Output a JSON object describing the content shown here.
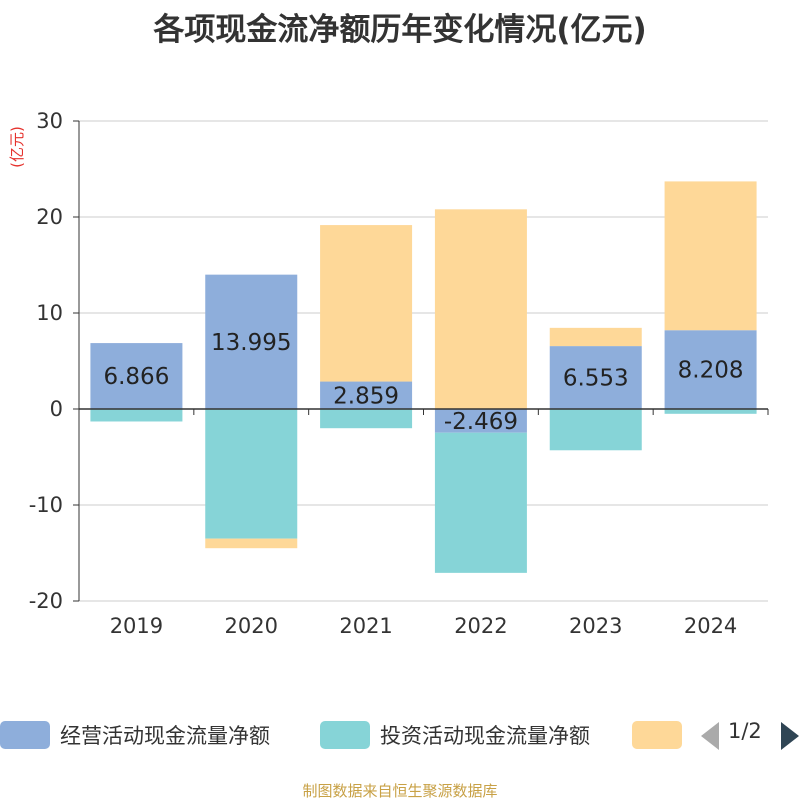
{
  "chart_data": {
    "type": "bar",
    "stacked": true,
    "title": "各项现金流净额历年变化情况(亿元)",
    "unit_label": "(亿元)",
    "categories": [
      "2019",
      "2020",
      "2021",
      "2022",
      "2023",
      "2024"
    ],
    "ylim": [
      -20,
      30
    ],
    "yticks": [
      -20,
      -10,
      0,
      10,
      20,
      30
    ],
    "grid": true,
    "legend_position": "bottom",
    "series": [
      {
        "name": "经营活动现金流量净额",
        "color": "#8eaedb",
        "values": [
          6.866,
          13.995,
          2.859,
          -2.469,
          6.553,
          8.208
        ]
      },
      {
        "name": "投资活动现金流量净额",
        "color": "#86d4d7",
        "values": [
          -1.3,
          -13.5,
          -2.0,
          -14.6,
          -4.3,
          -0.5
        ]
      },
      {
        "name": "",
        "color": "#fed898",
        "values": [
          0,
          -1.0,
          16.3,
          20.8,
          1.9,
          15.5
        ]
      }
    ],
    "data_labels": [
      "6.866",
      "13.995",
      "2.859",
      "-2.469",
      "6.553",
      "8.208"
    ]
  },
  "legend": {
    "page_indicator": "1/2"
  },
  "source_note": "制图数据来自恒生聚源数据库"
}
